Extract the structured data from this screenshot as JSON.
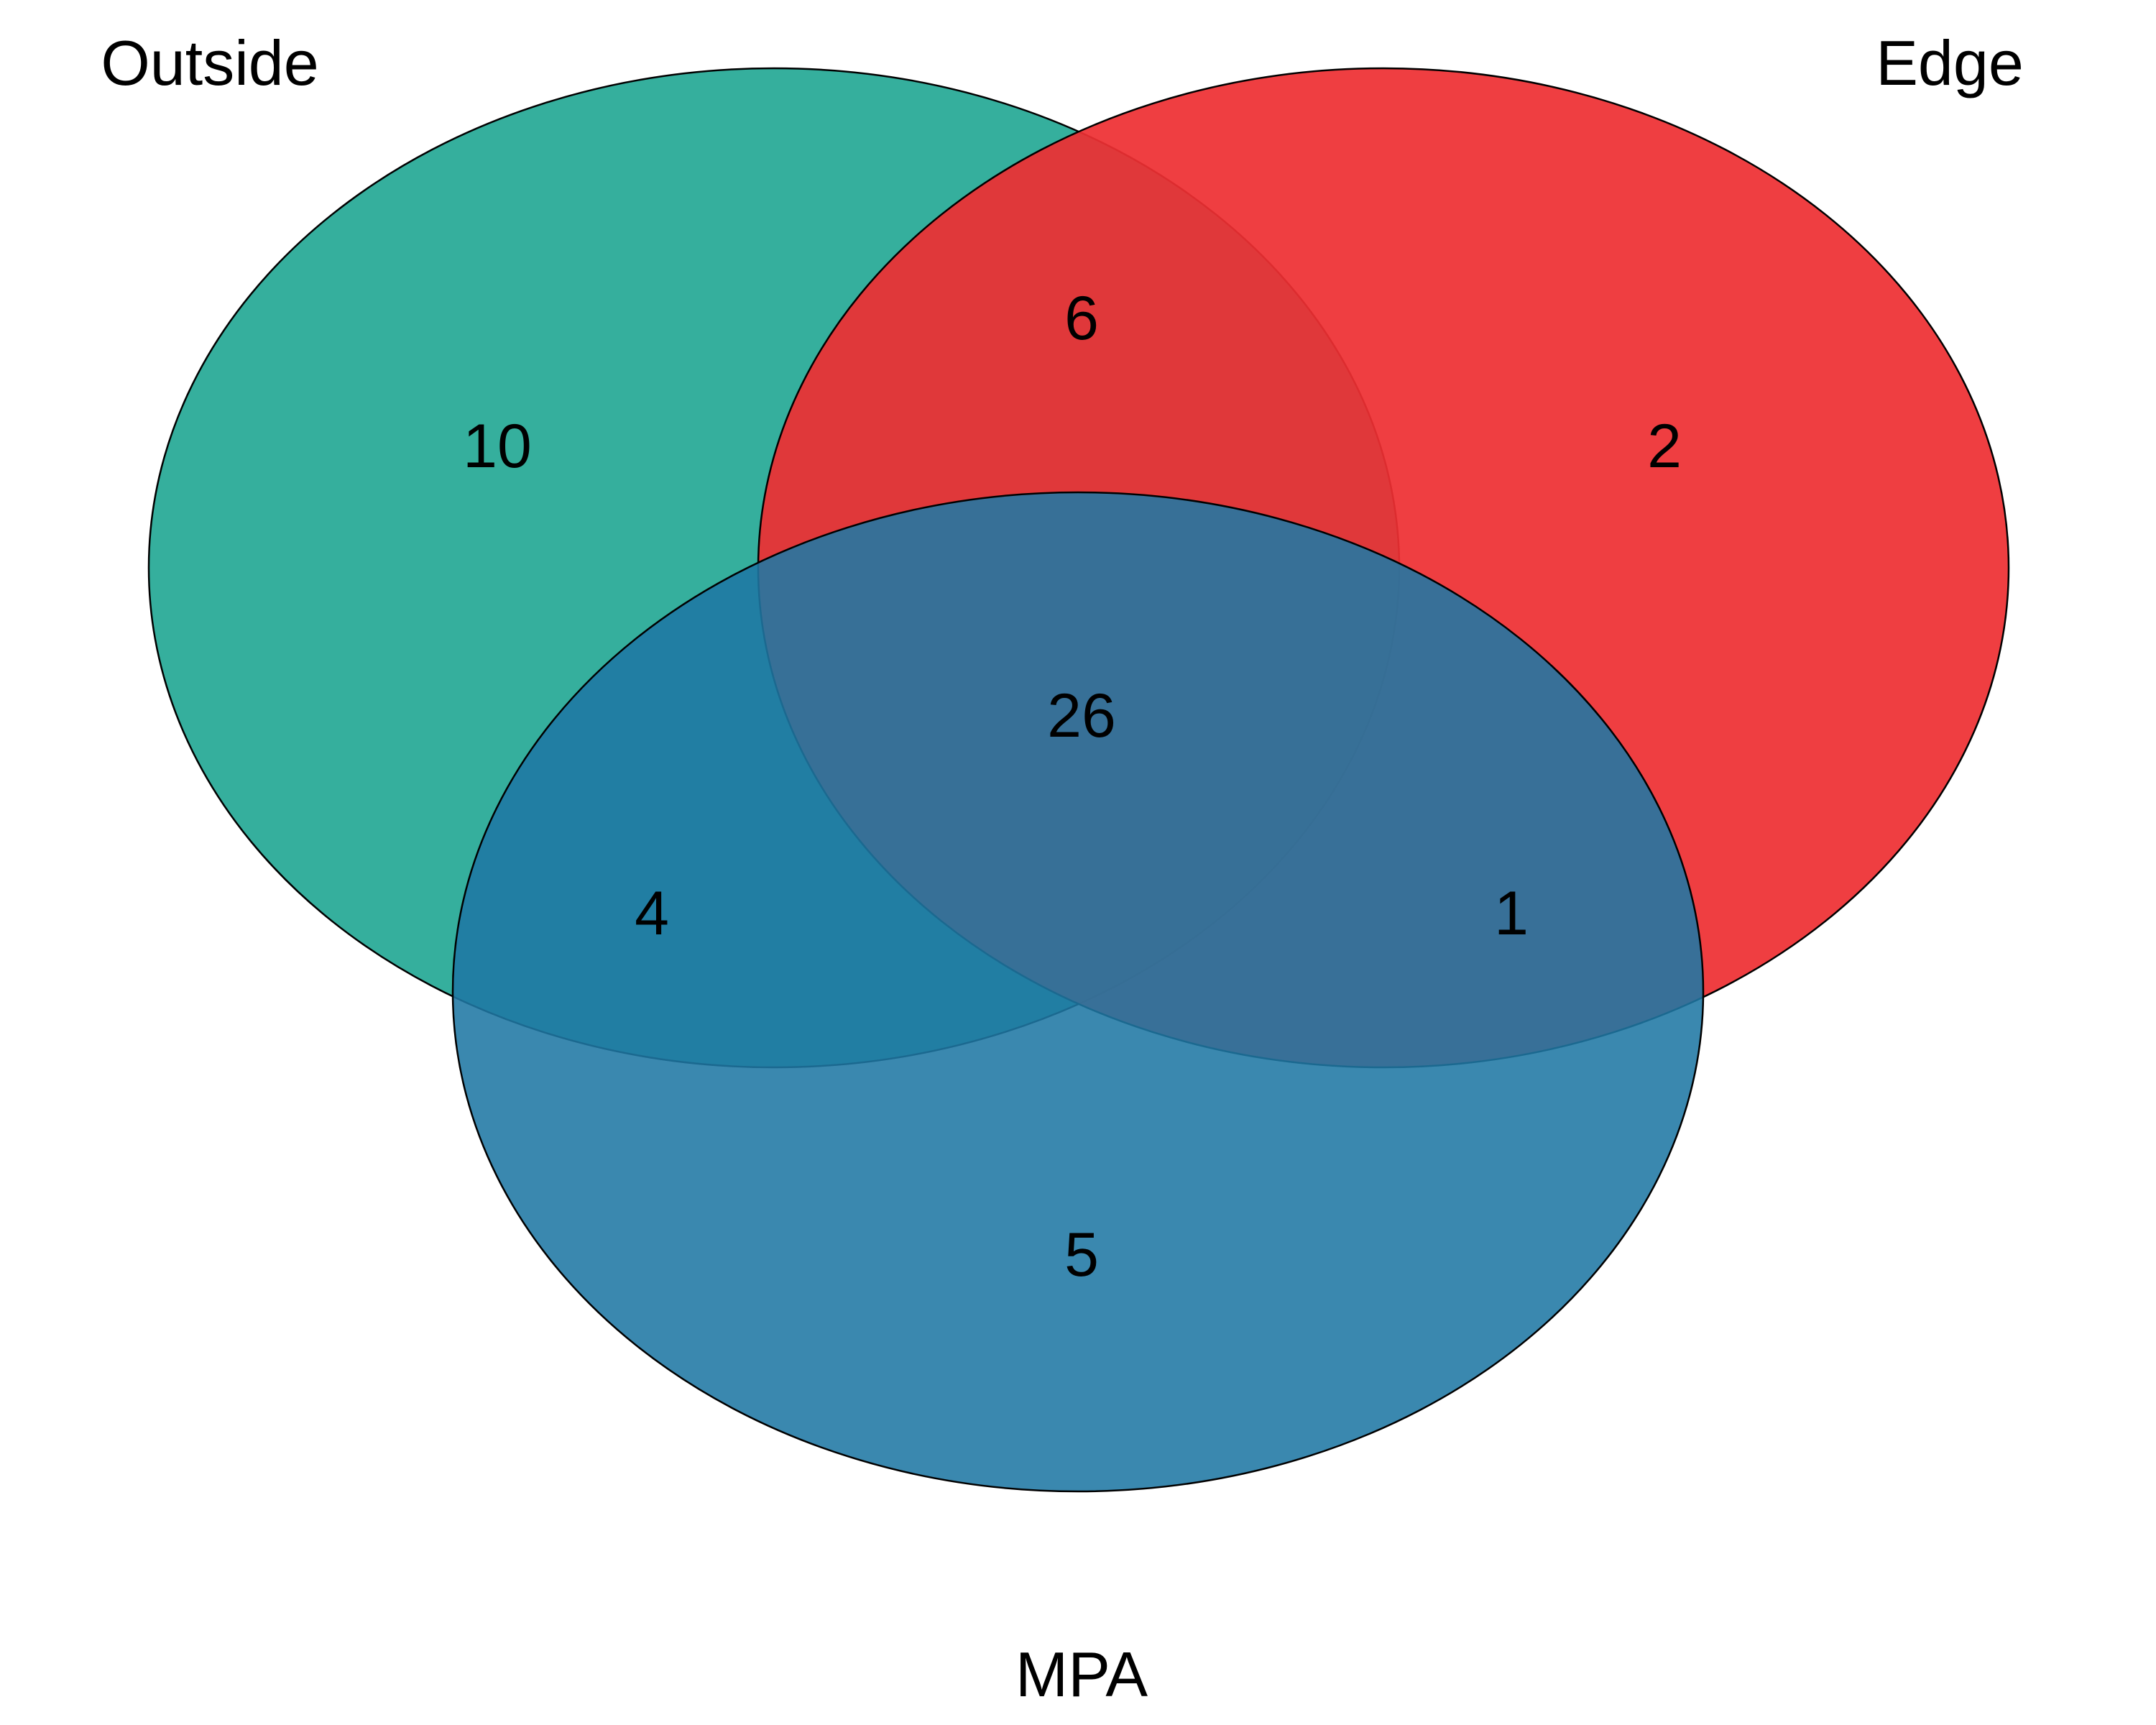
{
  "diagram": {
    "type": "venn",
    "sets": [
      {
        "id": "outside",
        "label": "Outside",
        "color": "#26A996",
        "opacity": 0.93
      },
      {
        "id": "edge",
        "label": "Edge",
        "color": "#EE2F33",
        "opacity": 0.93
      },
      {
        "id": "mpa",
        "label": "MPA",
        "color": "#1F78A4",
        "opacity": 0.88
      }
    ],
    "regions": {
      "outside_only": "10",
      "edge_only": "2",
      "mpa_only": "5",
      "outside_edge": "6",
      "outside_mpa": "4",
      "edge_mpa": "1",
      "all_three": "26"
    }
  }
}
